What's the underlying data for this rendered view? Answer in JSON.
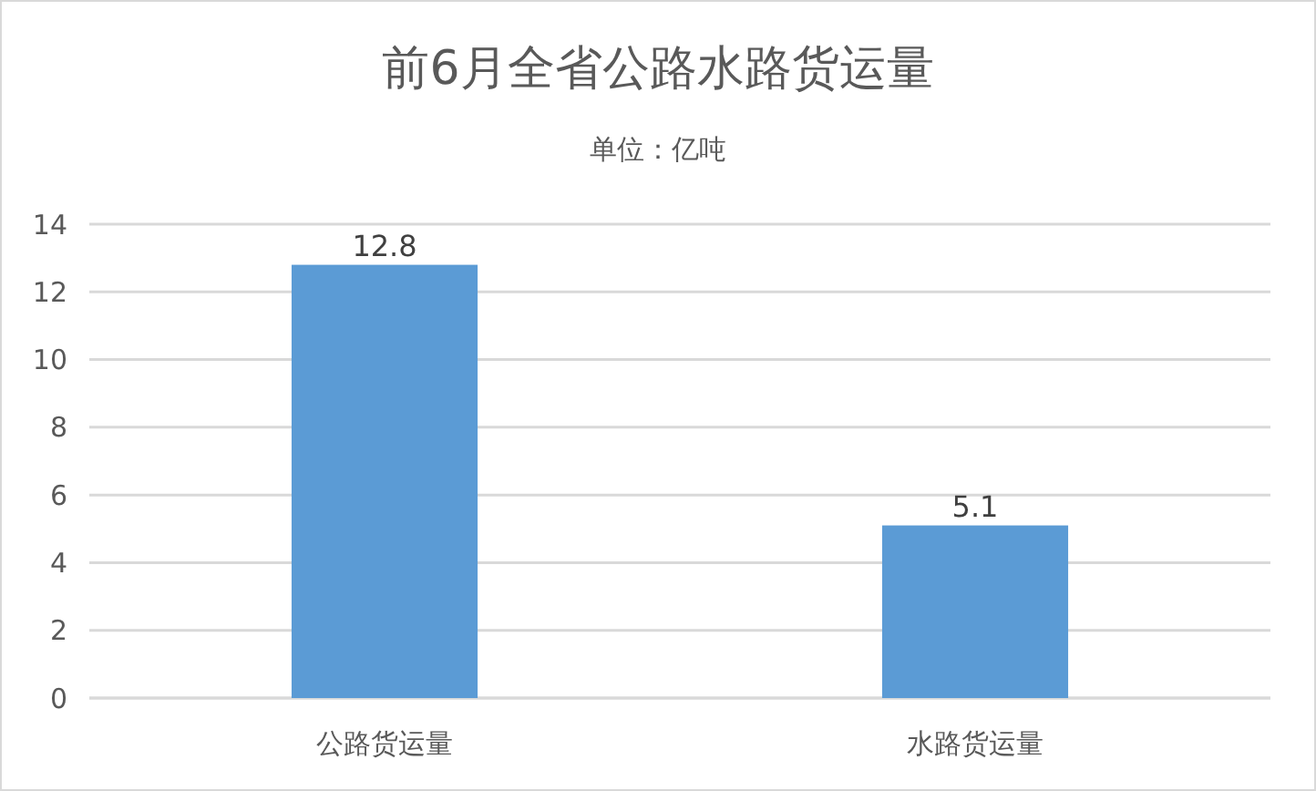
{
  "chart_data": {
    "type": "bar",
    "title": "前6月全省公路水路货运量",
    "subtitle": "单位：亿吨",
    "categories": [
      "公路货运量",
      "水路货运量"
    ],
    "values": [
      12.8,
      5.1
    ],
    "color": "#5b9bd5",
    "ylim": [
      0,
      14
    ],
    "yticks": [
      0,
      2,
      4,
      6,
      8,
      10,
      12,
      14
    ],
    "grid": "y",
    "data_labels": true
  }
}
